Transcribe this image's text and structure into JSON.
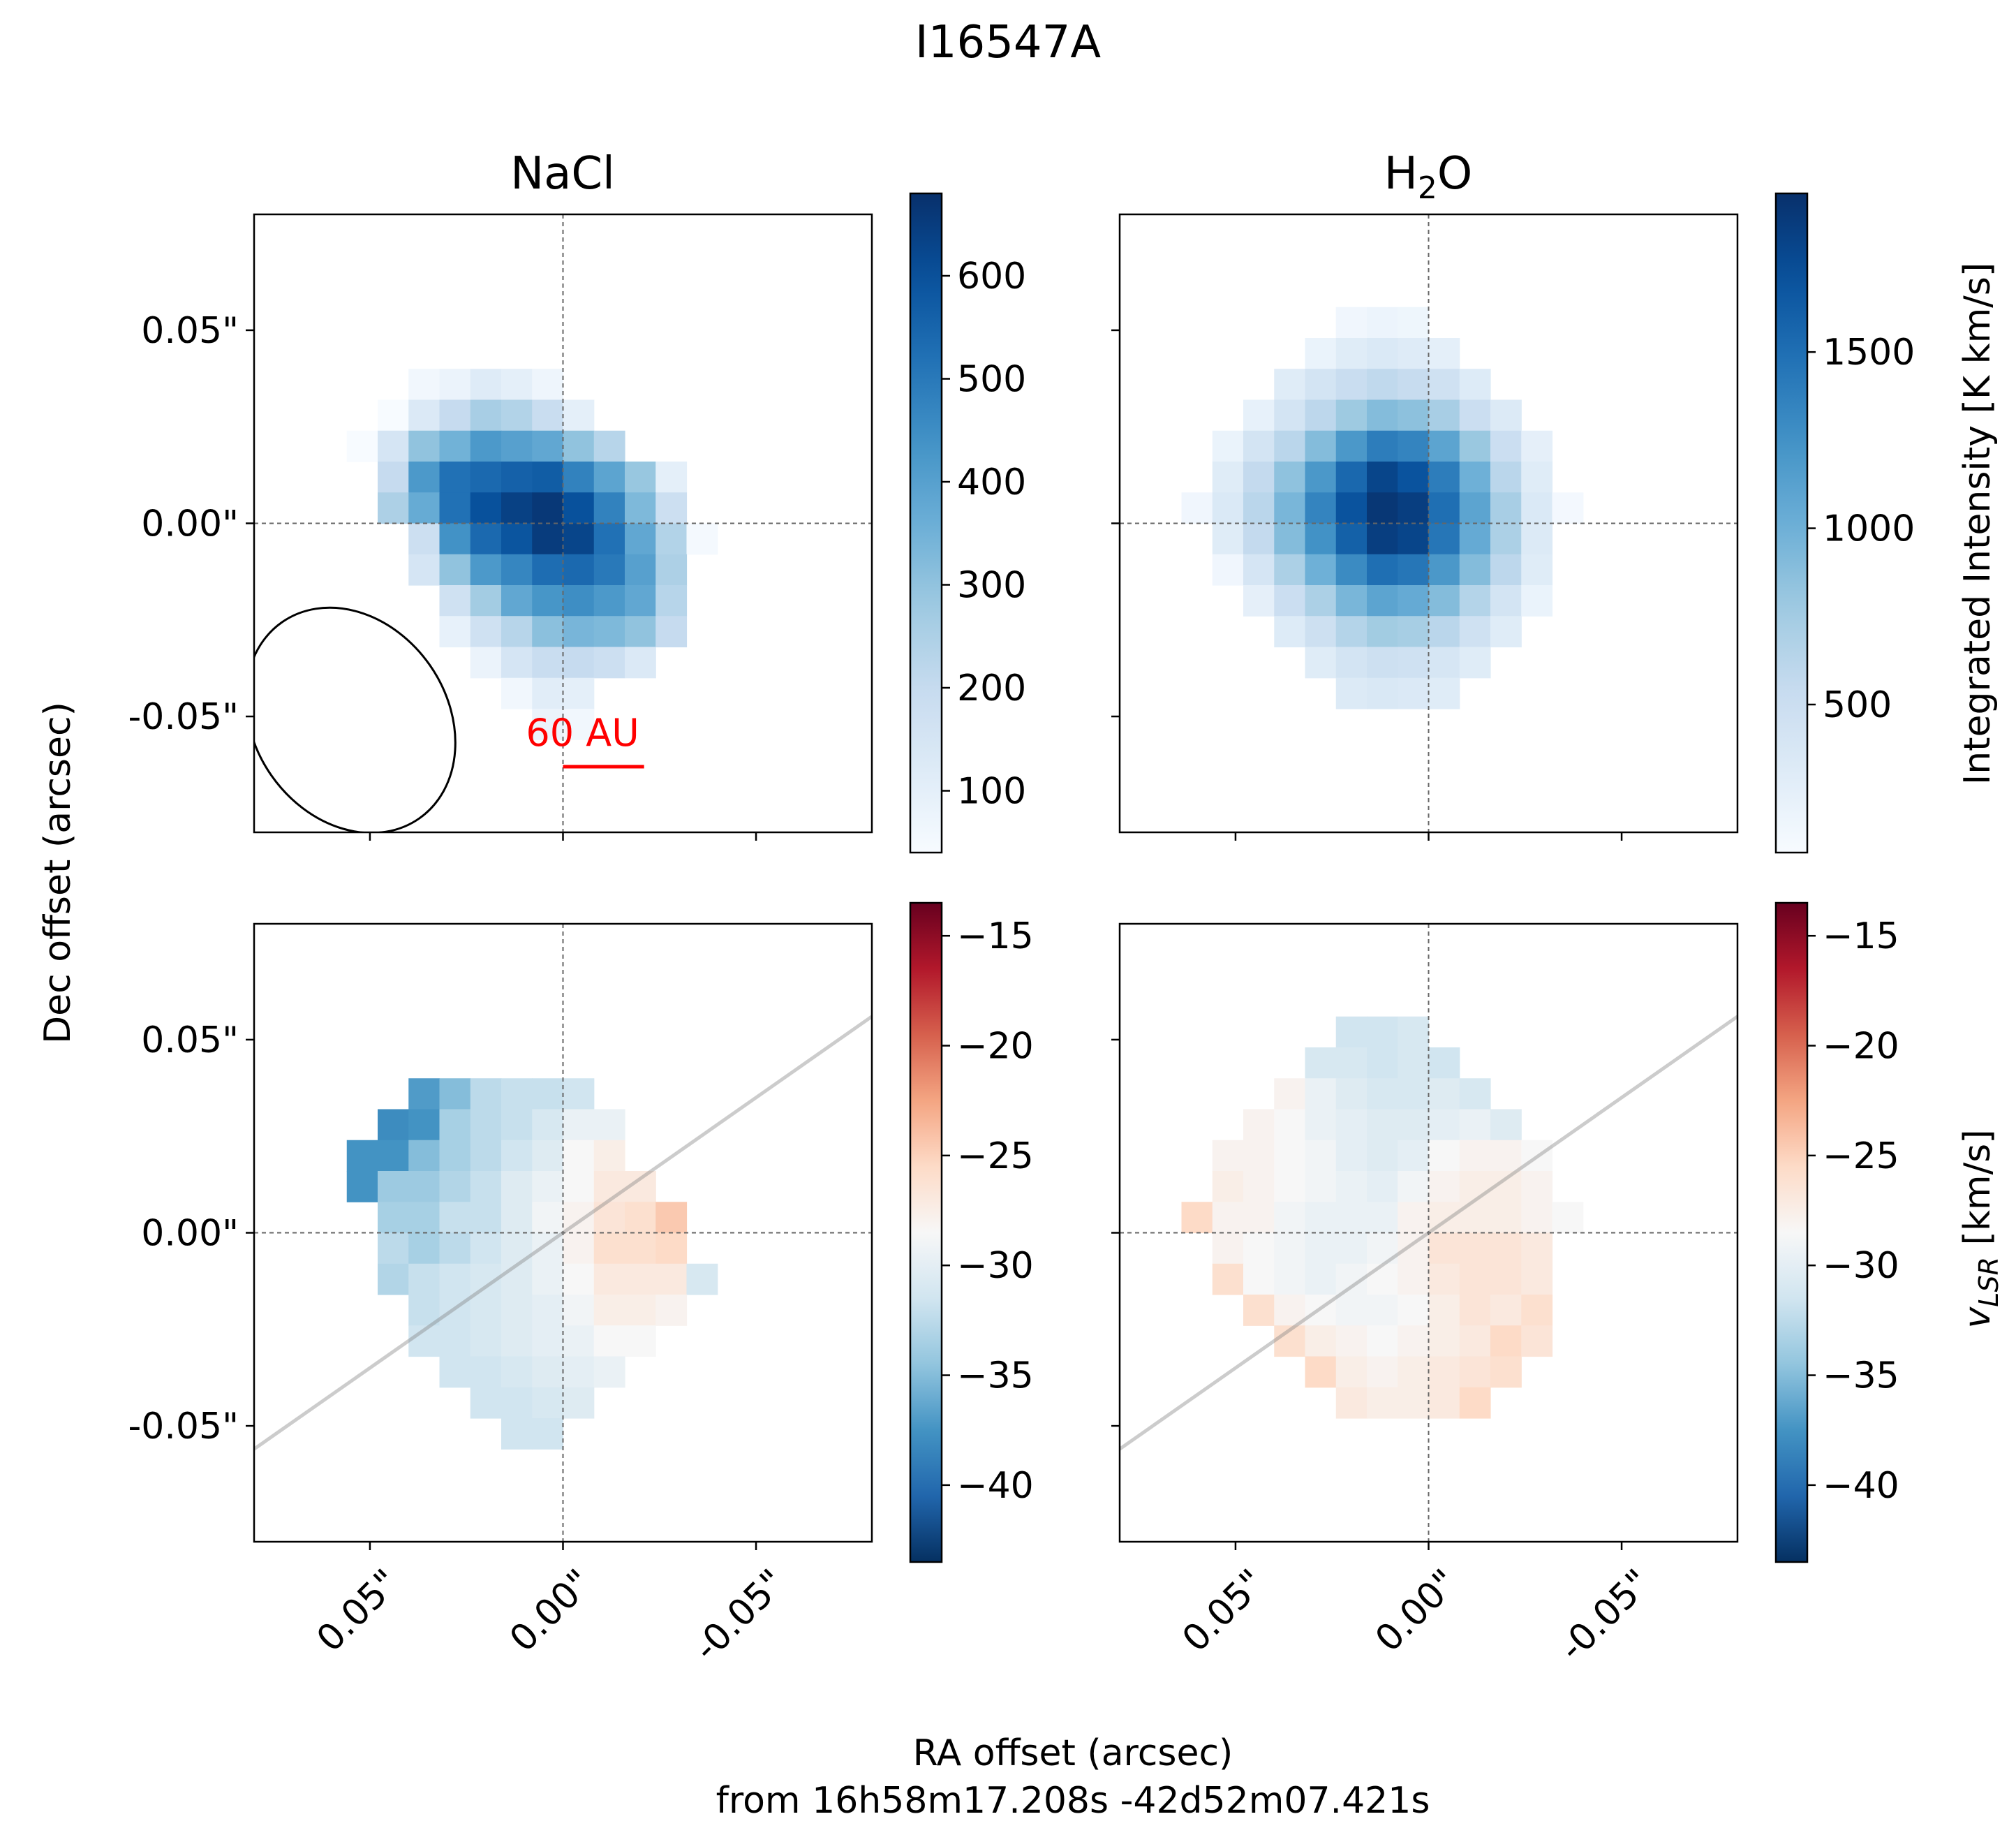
{
  "figure": {
    "suptitle": "I16547A",
    "ylabel": "Dec offset (arcsec)",
    "xlabel_line1": "RA offset (arcsec)",
    "xlabel_line2": "from 16h58m17.208s -42d52m07.421s"
  },
  "chart_data": [
    {
      "type": "heatmap",
      "panel": "top-left",
      "title": "NaCl",
      "quantity": "integrated intensity",
      "xlim": [
        0.08,
        -0.08
      ],
      "ylim": [
        -0.08,
        0.08
      ],
      "xticks": [
        0.05,
        0.0,
        -0.05
      ],
      "yticks": [
        0.05,
        0.0,
        -0.05
      ],
      "ytick_labels": [
        "0.05\"",
        "0.00\"",
        "-0.05\""
      ],
      "xtick_labels": [
        "0.05\"",
        "0.00\"",
        "-0.05\""
      ],
      "pixel_size": 0.008,
      "colormap": "Blues",
      "grid_origin": {
        "ra_start": 0.052,
        "dec_start": 0.036
      },
      "grid": [
        [
          0,
          0,
          60,
          80,
          120,
          100,
          70,
          0,
          0,
          0,
          0,
          0,
          0
        ],
        [
          0,
          40,
          130,
          200,
          260,
          240,
          190,
          100,
          0,
          0,
          0,
          0,
          0
        ],
        [
          40,
          150,
          300,
          350,
          420,
          400,
          380,
          300,
          230,
          0,
          0,
          0,
          0
        ],
        [
          0,
          200,
          420,
          520,
          540,
          560,
          570,
          480,
          390,
          290,
          100,
          0,
          0
        ],
        [
          0,
          250,
          370,
          520,
          600,
          640,
          660,
          600,
          480,
          330,
          180,
          0,
          0
        ],
        [
          0,
          0,
          180,
          440,
          540,
          590,
          650,
          630,
          520,
          380,
          240,
          50,
          0
        ],
        [
          0,
          0,
          150,
          300,
          420,
          470,
          530,
          540,
          500,
          400,
          250,
          0,
          0
        ],
        [
          0,
          0,
          0,
          170,
          270,
          380,
          430,
          450,
          420,
          380,
          230,
          0,
          0
        ],
        [
          0,
          0,
          0,
          90,
          170,
          230,
          310,
          340,
          330,
          300,
          200,
          0,
          0
        ],
        [
          0,
          0,
          0,
          0,
          80,
          150,
          190,
          200,
          180,
          130,
          0,
          0,
          0
        ],
        [
          0,
          0,
          0,
          0,
          0,
          60,
          110,
          100,
          0,
          0,
          0,
          0,
          0
        ],
        [
          0,
          0,
          0,
          0,
          0,
          0,
          80,
          60,
          0,
          0,
          0,
          0,
          0
        ]
      ],
      "colorbar": {
        "vmin": 40,
        "vmax": 680,
        "ticks": [
          100,
          200,
          300,
          400,
          500,
          600
        ],
        "label": ""
      },
      "beam": {
        "center_ra": 0.055,
        "center_dec": -0.051,
        "major": 0.062,
        "minor": 0.05,
        "pa_deg": 35
      },
      "annotations": [
        {
          "text": "60 AU",
          "color": "#ff0000",
          "bar_from_ra": 0.0,
          "bar_to_ra": -0.021,
          "dec": -0.063
        }
      ]
    },
    {
      "type": "heatmap",
      "panel": "top-right",
      "title": "H2O",
      "title_text": "H",
      "title_sub": "2",
      "title_tail": "O",
      "quantity": "integrated intensity",
      "xlim": [
        0.08,
        -0.08
      ],
      "ylim": [
        -0.08,
        0.08
      ],
      "xticks": [
        0.05,
        0.0,
        -0.05
      ],
      "yticks": [
        0.05,
        0.0,
        -0.05
      ],
      "xtick_labels": [
        "0.05\"",
        "0.00\"",
        "-0.05\""
      ],
      "pixel_size": 0.008,
      "colormap": "Blues",
      "grid_origin": {
        "ra_start": 0.06,
        "dec_start": 0.052
      },
      "grid": [
        [
          0,
          0,
          0,
          0,
          0,
          150,
          180,
          160,
          0,
          0,
          0,
          0,
          0,
          0
        ],
        [
          0,
          0,
          0,
          0,
          200,
          300,
          350,
          310,
          260,
          0,
          0,
          0,
          0,
          0
        ],
        [
          0,
          0,
          0,
          300,
          420,
          520,
          580,
          540,
          460,
          320,
          0,
          0,
          0,
          0
        ],
        [
          0,
          0,
          230,
          420,
          600,
          780,
          900,
          860,
          720,
          500,
          330,
          0,
          0,
          0
        ],
        [
          0,
          200,
          420,
          620,
          900,
          1200,
          1400,
          1350,
          1100,
          800,
          500,
          250,
          0,
          0
        ],
        [
          0,
          300,
          560,
          850,
          1200,
          1550,
          1800,
          1700,
          1400,
          1000,
          620,
          300,
          0,
          0
        ],
        [
          150,
          350,
          620,
          950,
          1350,
          1700,
          1900,
          1850,
          1500,
          1100,
          720,
          350,
          120,
          0
        ],
        [
          0,
          300,
          560,
          900,
          1250,
          1600,
          1850,
          1800,
          1450,
          1050,
          700,
          330,
          0,
          0
        ],
        [
          0,
          150,
          400,
          700,
          1000,
          1300,
          1500,
          1450,
          1200,
          900,
          600,
          300,
          0,
          0
        ],
        [
          0,
          0,
          250,
          500,
          700,
          950,
          1100,
          1050,
          900,
          650,
          420,
          200,
          0,
          0
        ],
        [
          0,
          0,
          0,
          320,
          480,
          650,
          760,
          730,
          620,
          460,
          300,
          0,
          0,
          0
        ],
        [
          0,
          0,
          0,
          0,
          300,
          420,
          480,
          460,
          390,
          300,
          0,
          0,
          0,
          0
        ],
        [
          0,
          0,
          0,
          0,
          0,
          330,
          360,
          340,
          300,
          0,
          0,
          0,
          0,
          0
        ]
      ],
      "colorbar": {
        "vmin": 80,
        "vmax": 1950,
        "ticks": [
          500,
          1000,
          1500
        ],
        "label": "Integrated Intensity [K km/s]"
      }
    },
    {
      "type": "heatmap",
      "panel": "bottom-left",
      "quantity": "velocity",
      "xlim": [
        0.08,
        -0.08
      ],
      "ylim": [
        -0.08,
        0.08
      ],
      "xticks": [
        0.05,
        0.0,
        -0.05
      ],
      "yticks": [
        0.05,
        0.0,
        -0.05
      ],
      "xtick_labels": [
        "0.05\"",
        "0.00\"",
        "-0.05\""
      ],
      "ytick_labels": [
        "0.05\"",
        "0.00\"",
        "-0.05\""
      ],
      "pixel_size": 0.008,
      "colormap": "RdBu_r",
      "grid_origin": {
        "ra_start": 0.052,
        "dec_start": 0.036
      },
      "grid": [
        [
          null,
          null,
          -37.0,
          -35.0,
          -32.5,
          -32.0,
          -32.0,
          -31.5,
          null,
          null,
          null,
          null,
          null
        ],
        [
          null,
          -38.0,
          -37.5,
          -33.5,
          -32.5,
          -32.0,
          -31.0,
          -29.5,
          -29.5,
          null,
          null,
          null,
          null
        ],
        [
          -37.5,
          -37.5,
          -35.0,
          -33.5,
          -32.5,
          -31.5,
          -30.5,
          -28.5,
          -27.5,
          null,
          null,
          null,
          null
        ],
        [
          -37.5,
          -34.0,
          -34.0,
          -33.0,
          -32.0,
          -30.5,
          -29.5,
          -28.5,
          -27.0,
          -27.0,
          null,
          null,
          null
        ],
        [
          null,
          -33.5,
          -33.5,
          -32.0,
          -32.0,
          -30.5,
          -29.0,
          -28.0,
          -26.5,
          -26.0,
          -24.5,
          null,
          null
        ],
        [
          null,
          -32.5,
          -33.5,
          -32.5,
          -31.5,
          -30.5,
          -29.5,
          -28.0,
          -26.0,
          -26.0,
          -25.5,
          null,
          null
        ],
        [
          null,
          -33.0,
          -32.0,
          -31.5,
          -31.0,
          -30.5,
          -29.5,
          -28.5,
          -27.0,
          -27.0,
          -27.0,
          -31.0,
          null
        ],
        [
          null,
          null,
          -32.0,
          -31.5,
          -31.0,
          -30.5,
          -30.0,
          -29.0,
          -27.5,
          -27.5,
          -28.0,
          null,
          null
        ],
        [
          null,
          null,
          -31.5,
          -31.5,
          -31.0,
          -30.5,
          -30.0,
          -29.5,
          -28.5,
          -28.5,
          null,
          null,
          null
        ],
        [
          null,
          null,
          null,
          -31.5,
          -31.5,
          -31.0,
          -30.5,
          -30.0,
          -29.5,
          null,
          null,
          null,
          null
        ],
        [
          null,
          null,
          null,
          null,
          -31.5,
          -31.5,
          -31.0,
          -30.5,
          null,
          null,
          null,
          null,
          null
        ],
        [
          null,
          null,
          null,
          null,
          null,
          -31.5,
          -31.5,
          null,
          null,
          null,
          null,
          null,
          null
        ]
      ],
      "colorbar": {
        "vmin": -43.5,
        "vmax": -13.5,
        "ticks": [
          -40,
          -35,
          -30,
          -25,
          -20,
          -15
        ],
        "tick_labels": [
          "−40",
          "−35",
          "−30",
          "−25",
          "−20",
          "−15"
        ],
        "label": ""
      },
      "pa_line": {
        "through_ra": 0.0,
        "through_dec": 0.0,
        "slope_dec_per_ra": -0.7
      }
    },
    {
      "type": "heatmap",
      "panel": "bottom-right",
      "quantity": "velocity",
      "xlim": [
        0.08,
        -0.08
      ],
      "ylim": [
        -0.08,
        0.08
      ],
      "xticks": [
        0.05,
        0.0,
        -0.05
      ],
      "yticks": [
        0.05,
        0.0,
        -0.05
      ],
      "xtick_labels": [
        "0.05\"",
        "0.00\"",
        "-0.05\""
      ],
      "pixel_size": 0.008,
      "colormap": "RdBu_r",
      "grid_origin": {
        "ra_start": 0.06,
        "dec_start": 0.052
      },
      "grid": [
        [
          null,
          null,
          null,
          null,
          null,
          -31.5,
          -31.5,
          -31.0,
          null,
          null,
          null,
          null,
          null,
          null
        ],
        [
          null,
          null,
          null,
          null,
          -31.0,
          -31.0,
          -31.5,
          -31.0,
          -31.5,
          null,
          null,
          null,
          null,
          null
        ],
        [
          null,
          null,
          null,
          -28.0,
          -29.5,
          -30.5,
          -31.0,
          -31.0,
          -30.5,
          -31.0,
          null,
          null,
          null,
          null
        ],
        [
          null,
          null,
          -28.0,
          -28.5,
          -29.5,
          -30.0,
          -30.5,
          -30.5,
          -30.0,
          -29.5,
          -30.5,
          null,
          null,
          null
        ],
        [
          null,
          -28.0,
          -28.0,
          -28.5,
          -29.0,
          -30.0,
          -30.5,
          -30.0,
          -28.5,
          -28.0,
          -28.0,
          -28.5,
          null,
          null
        ],
        [
          null,
          -27.5,
          -28.0,
          -28.5,
          -29.0,
          -29.5,
          -30.0,
          -29.0,
          -28.0,
          -27.5,
          -27.5,
          -28.0,
          null,
          null
        ],
        [
          -25.5,
          -28.0,
          -28.0,
          -29.0,
          -29.5,
          -29.5,
          -29.5,
          -28.0,
          -27.5,
          -27.5,
          -27.5,
          -28.0,
          -28.5,
          null
        ],
        [
          null,
          -28.0,
          -28.5,
          -29.0,
          -29.5,
          -29.5,
          -29.0,
          -28.0,
          -26.5,
          -26.5,
          -26.5,
          -27.0,
          null,
          null
        ],
        [
          null,
          -26.0,
          -28.5,
          -29.0,
          -29.5,
          -29.0,
          -28.5,
          -28.0,
          -27.0,
          -26.5,
          -26.5,
          -27.0,
          null,
          null
        ],
        [
          null,
          null,
          -26.0,
          -28.0,
          -28.5,
          -29.0,
          -29.0,
          -28.5,
          -27.5,
          -26.5,
          -27.0,
          -26.0,
          null,
          null
        ],
        [
          null,
          null,
          null,
          -26.0,
          -27.5,
          -28.0,
          -28.5,
          -28.0,
          -27.5,
          -27.0,
          -25.5,
          -26.5,
          null,
          null
        ],
        [
          null,
          null,
          null,
          null,
          -25.5,
          -27.5,
          -28.0,
          -27.5,
          -27.0,
          -26.5,
          -26.0,
          null,
          null,
          null
        ],
        [
          null,
          null,
          null,
          null,
          null,
          -27.0,
          -27.5,
          -27.5,
          -27.0,
          -25.5,
          null,
          null,
          null,
          null
        ]
      ],
      "colorbar": {
        "vmin": -43.5,
        "vmax": -13.5,
        "ticks": [
          -40,
          -35,
          -30,
          -25,
          -20,
          -15
        ],
        "tick_labels": [
          "−40",
          "−35",
          "−30",
          "−25",
          "−20",
          "−15"
        ],
        "label": "v_LSR [km/s]",
        "label_main": "v",
        "label_sub": "LSR",
        "label_tail": " [km/s]"
      },
      "pa_line": {
        "through_ra": 0.0,
        "through_dec": 0.0,
        "slope_dec_per_ra": -0.7
      }
    }
  ]
}
